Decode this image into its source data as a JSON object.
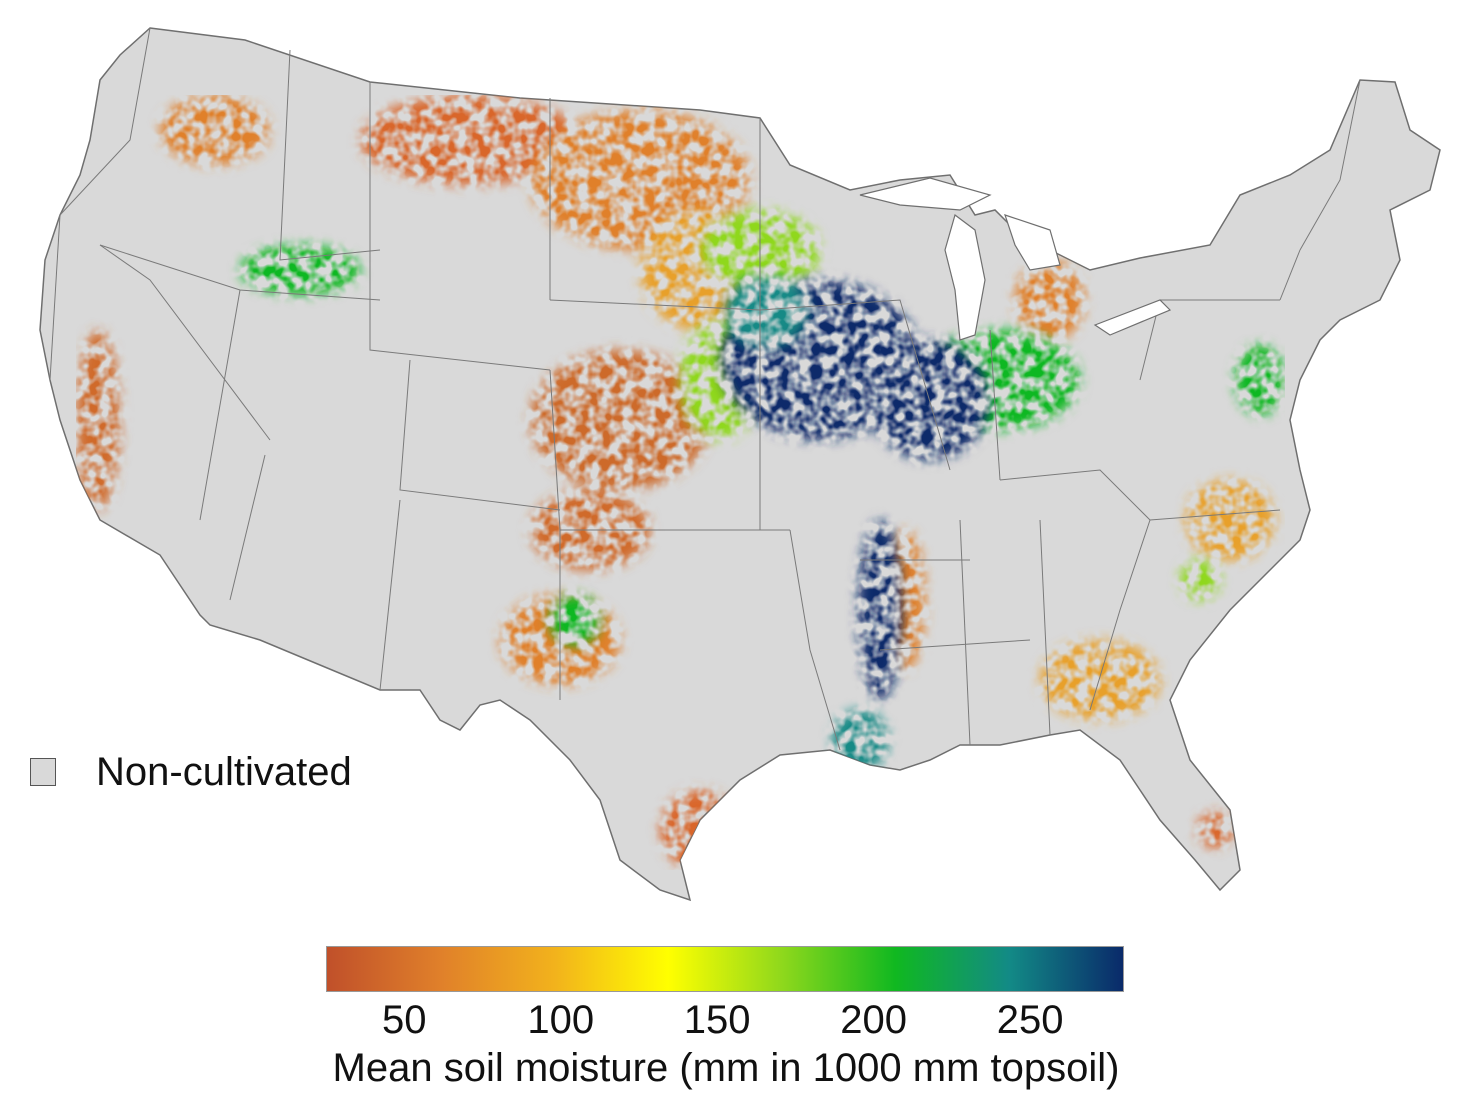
{
  "map": {
    "background_color": "#d9d9d9",
    "border_color": "#6f6f6f",
    "region": "contiguous United States",
    "legend": {
      "no_data_label": "Non-cultivated",
      "no_data_color": "#d9d9d9"
    },
    "colorbar": {
      "title": "Mean soil moisture (mm in 1000 mm topsoil)",
      "ticks": [
        "50",
        "100",
        "150",
        "200",
        "250"
      ],
      "tick_values": [
        50,
        100,
        150,
        200,
        250
      ],
      "range": [
        25,
        280
      ],
      "colors": [
        "#c0502a",
        "#e0802a",
        "#f2b21c",
        "#ffff00",
        "#8fd81c",
        "#10b820",
        "#128a86",
        "#0a2a6a"
      ]
    }
  }
}
